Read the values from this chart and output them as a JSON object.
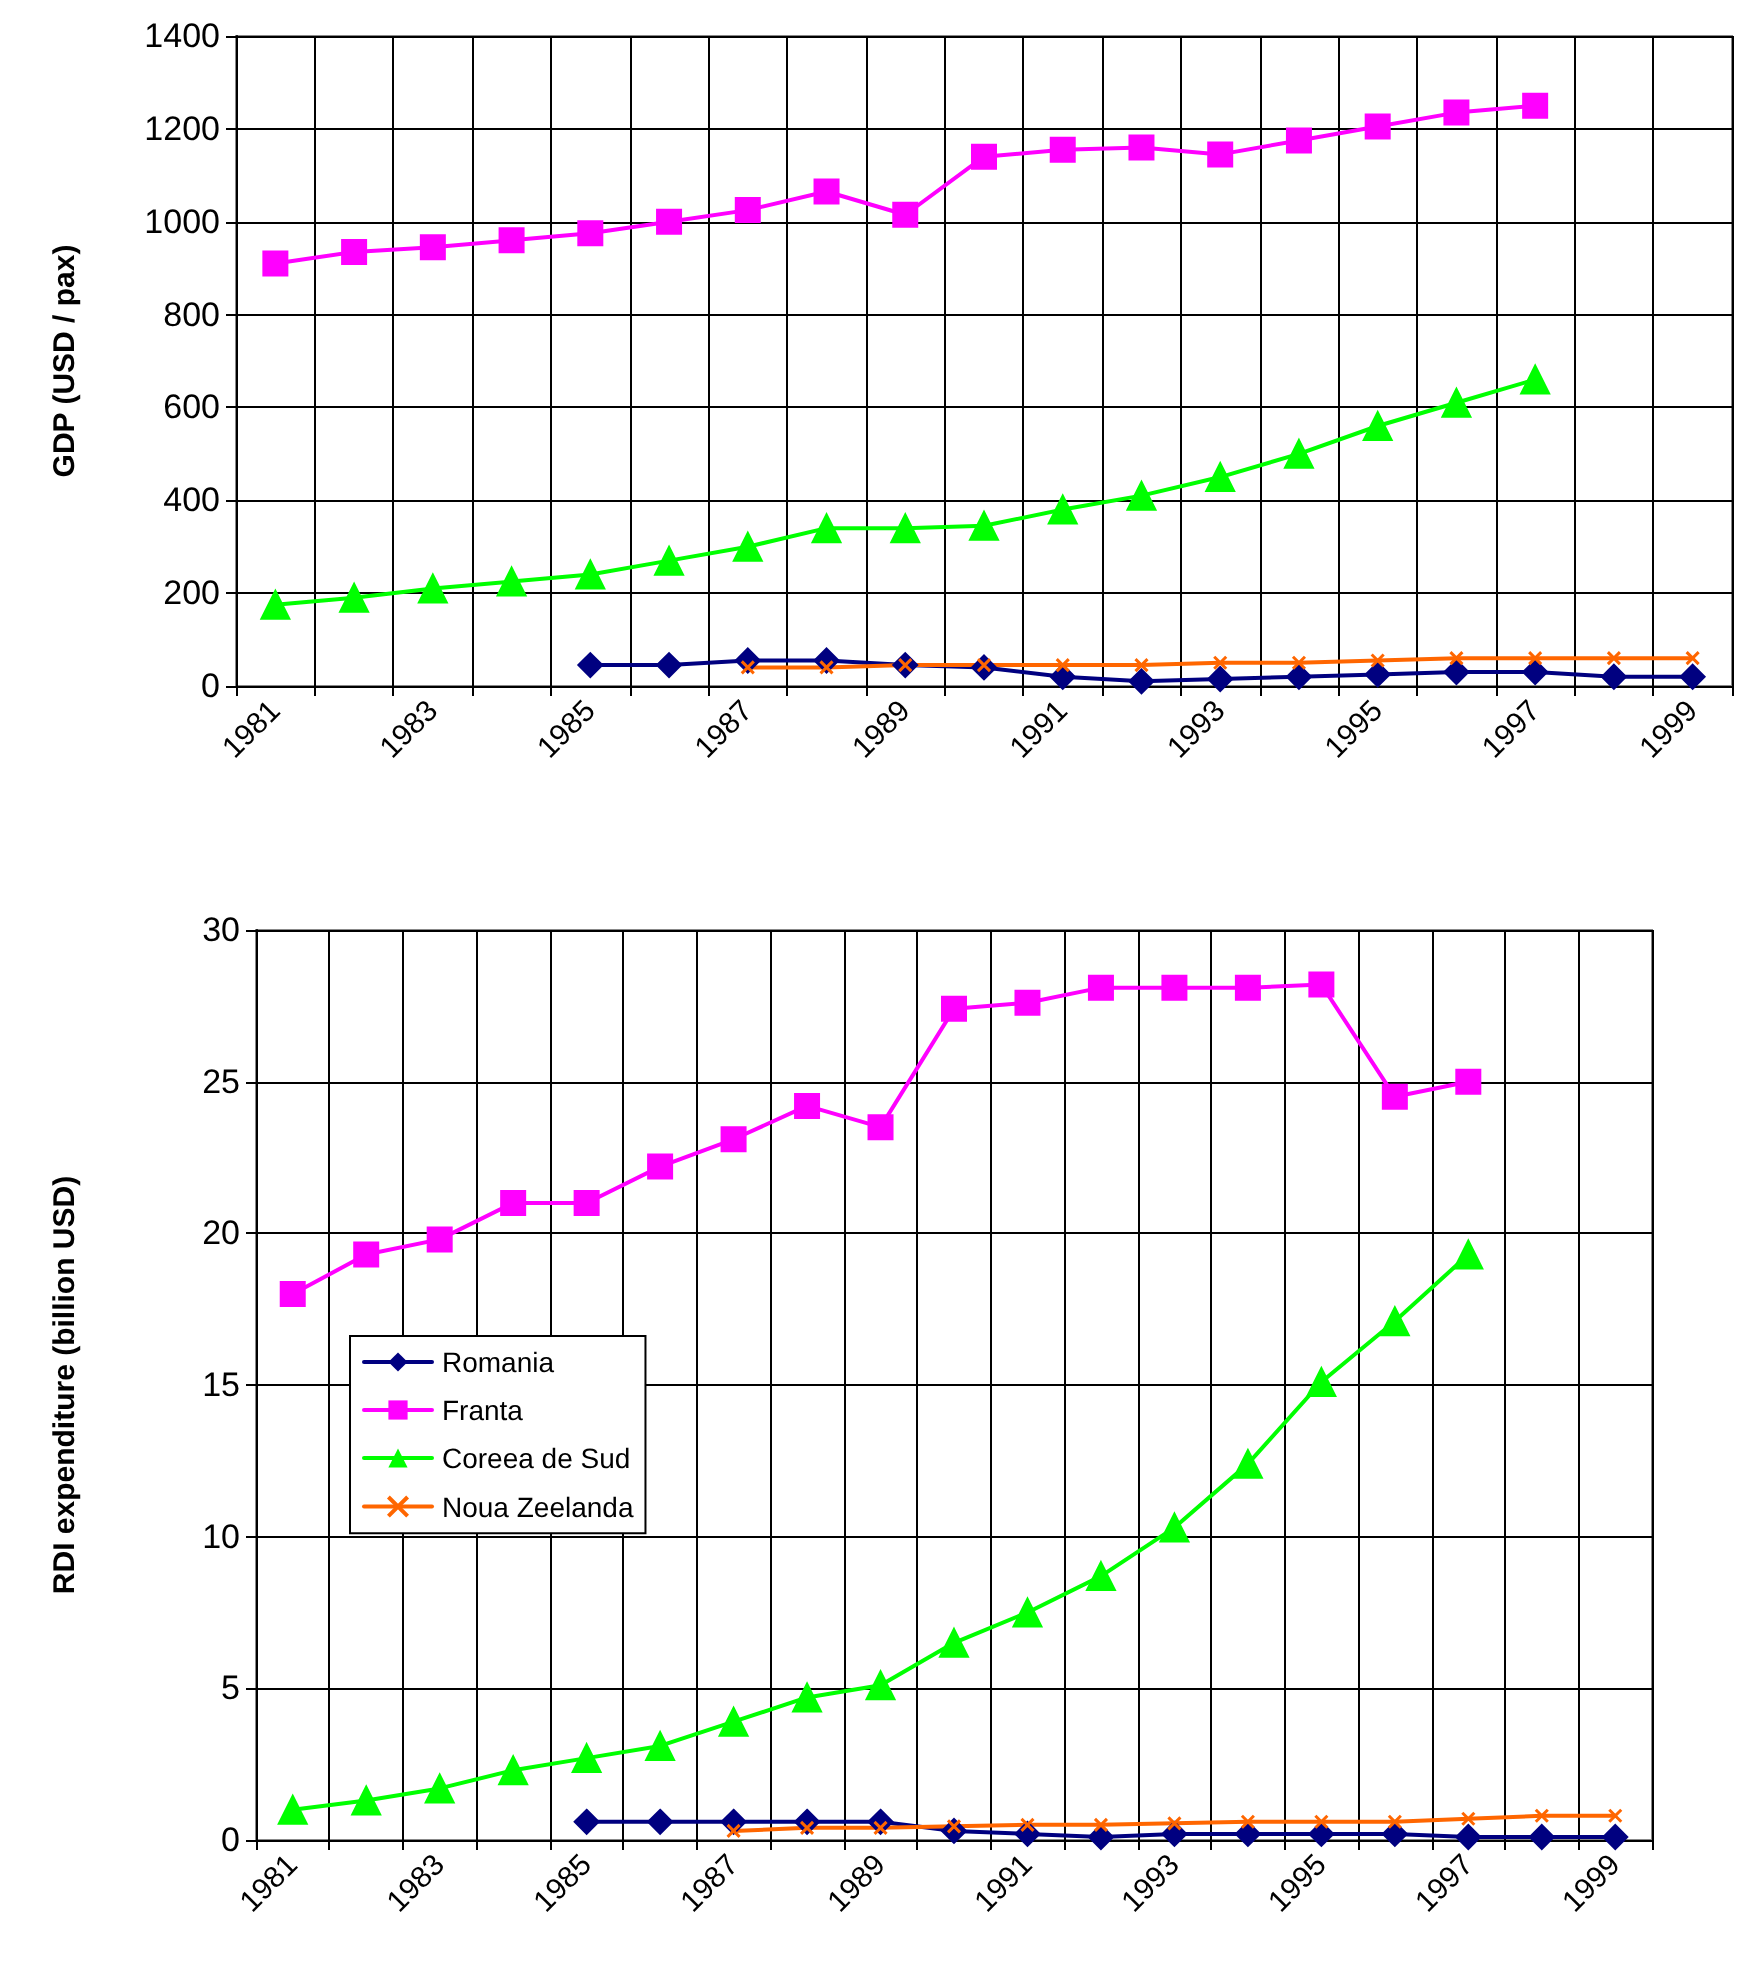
{
  "chart_data": [
    {
      "type": "line",
      "ylabel": "GDP (USD / pax)",
      "categories": [
        "1981",
        null,
        "1983",
        null,
        "1985",
        null,
        "1987",
        null,
        "1989",
        null,
        "1991",
        null,
        "1993",
        null,
        "1995",
        null,
        "1997",
        null,
        "1999"
      ],
      "ylim": [
        0,
        1400
      ],
      "yticks": [
        0,
        200,
        400,
        600,
        800,
        1000,
        1200,
        1400
      ],
      "grid": true,
      "legend": false,
      "series": [
        {
          "color": "#000080",
          "marker": "diamond",
          "values": [
            null,
            null,
            null,
            null,
            45,
            45,
            55,
            55,
            45,
            40,
            20,
            10,
            15,
            20,
            25,
            30,
            30,
            20,
            20
          ]
        },
        {
          "color": "#ff00ff",
          "marker": "square",
          "values": [
            910,
            935,
            945,
            960,
            975,
            1000,
            1025,
            1065,
            1015,
            1140,
            1155,
            1160,
            1145,
            1175,
            1205,
            1235,
            1250,
            null,
            null
          ]
        },
        {
          "color": "#00ff00",
          "marker": "triangle",
          "values": [
            175,
            190,
            210,
            225,
            240,
            270,
            300,
            340,
            340,
            345,
            380,
            410,
            450,
            500,
            560,
            610,
            660,
            null,
            null
          ]
        },
        {
          "color": "#ff6600",
          "marker": "cross",
          "values": [
            null,
            null,
            null,
            null,
            null,
            null,
            40,
            40,
            45,
            45,
            45,
            45,
            50,
            50,
            55,
            60,
            60,
            60,
            60
          ]
        }
      ]
    },
    {
      "type": "line",
      "ylabel": "RDI expenditure (billion USD)",
      "categories": [
        "1981",
        null,
        "1983",
        null,
        "1985",
        null,
        "1987",
        null,
        "1989",
        null,
        "1991",
        null,
        "1993",
        null,
        "1995",
        null,
        "1997",
        null,
        "1999"
      ],
      "ylim": [
        0,
        30
      ],
      "yticks": [
        0,
        5,
        10,
        15,
        20,
        25,
        30
      ],
      "grid": true,
      "legend": "left",
      "series": [
        {
          "name": "Romania",
          "color": "#000080",
          "marker": "diamond",
          "values": [
            null,
            null,
            null,
            null,
            0.6,
            0.6,
            0.6,
            0.6,
            0.6,
            0.3,
            0.2,
            0.1,
            0.2,
            0.2,
            0.2,
            0.2,
            0.1,
            0.1,
            0.1
          ]
        },
        {
          "name": "Franta",
          "color": "#ff00ff",
          "marker": "square",
          "values": [
            18,
            19.3,
            19.8,
            21,
            21,
            22.2,
            23.1,
            24.2,
            23.5,
            27.4,
            27.6,
            28.1,
            28.1,
            28.1,
            28.2,
            24.5,
            25,
            null,
            null
          ]
        },
        {
          "name": "Coreea de Sud",
          "color": "#00ff00",
          "marker": "triangle",
          "values": [
            1.0,
            1.3,
            1.7,
            2.3,
            2.7,
            3.1,
            3.9,
            4.7,
            5.1,
            6.5,
            7.5,
            8.7,
            10.3,
            12.4,
            15.1,
            17.1,
            19.3,
            null,
            null
          ]
        },
        {
          "name": "Noua Zeelanda",
          "color": "#ff6600",
          "marker": "cross",
          "values": [
            null,
            null,
            null,
            null,
            null,
            null,
            0.3,
            0.4,
            0.4,
            0.45,
            0.5,
            0.5,
            0.55,
            0.6,
            0.6,
            0.6,
            0.7,
            0.8,
            0.8
          ]
        }
      ]
    }
  ]
}
